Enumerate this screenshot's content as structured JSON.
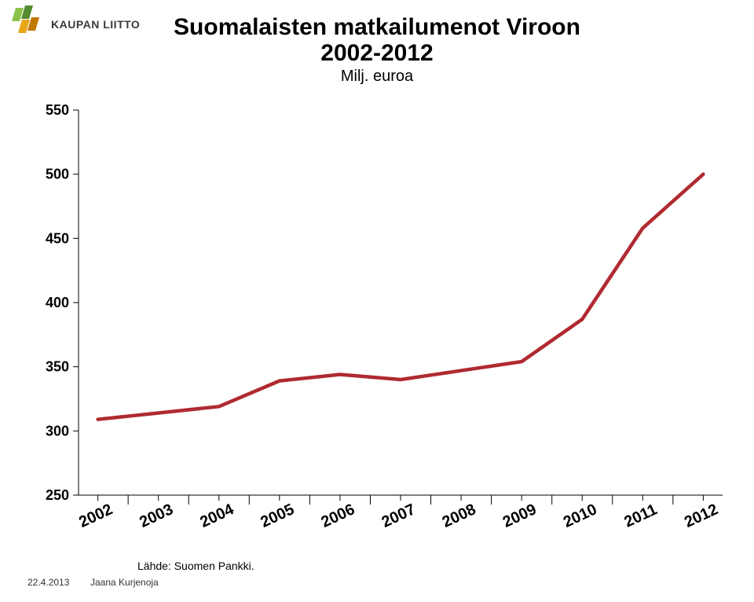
{
  "logo_text": "KAUPAN LIITTO",
  "logo_colors": {
    "green": "#8bc34a",
    "dark_green": "#558b2f",
    "orange": "#e6a817",
    "dark_orange": "#c07800"
  },
  "title": {
    "line1": "Suomalaisten matkailumenot Viroon",
    "line2": "2002-2012",
    "unit": "Milj. euroa",
    "title_fontsize": 30,
    "unit_fontsize": 20,
    "color": "#000000"
  },
  "chart": {
    "type": "line",
    "background_color": "#ffffff",
    "categories": [
      "2002",
      "2003",
      "2004",
      "2005",
      "2006",
      "2007",
      "2008",
      "2009",
      "2010",
      "2011",
      "2012"
    ],
    "values": [
      309,
      314,
      319,
      339,
      344,
      340,
      347,
      354,
      387,
      458,
      500
    ],
    "line_color": "#b02a30",
    "line_width": 4.5,
    "ylim": [
      250,
      550
    ],
    "ytick_step": 50,
    "yticks": [
      250,
      300,
      350,
      400,
      450,
      500,
      550
    ],
    "xtick_rotation": -25,
    "grid_color": "#000000",
    "tick_length_major": 7,
    "tick_length_minor": 12,
    "axis_fontsize": 18,
    "xaxis_fontsize": 20
  },
  "footer": {
    "date": "22.4.2013",
    "author": "Jaana Kurjenoja",
    "source": "Lähde: Suomen Pankki."
  }
}
